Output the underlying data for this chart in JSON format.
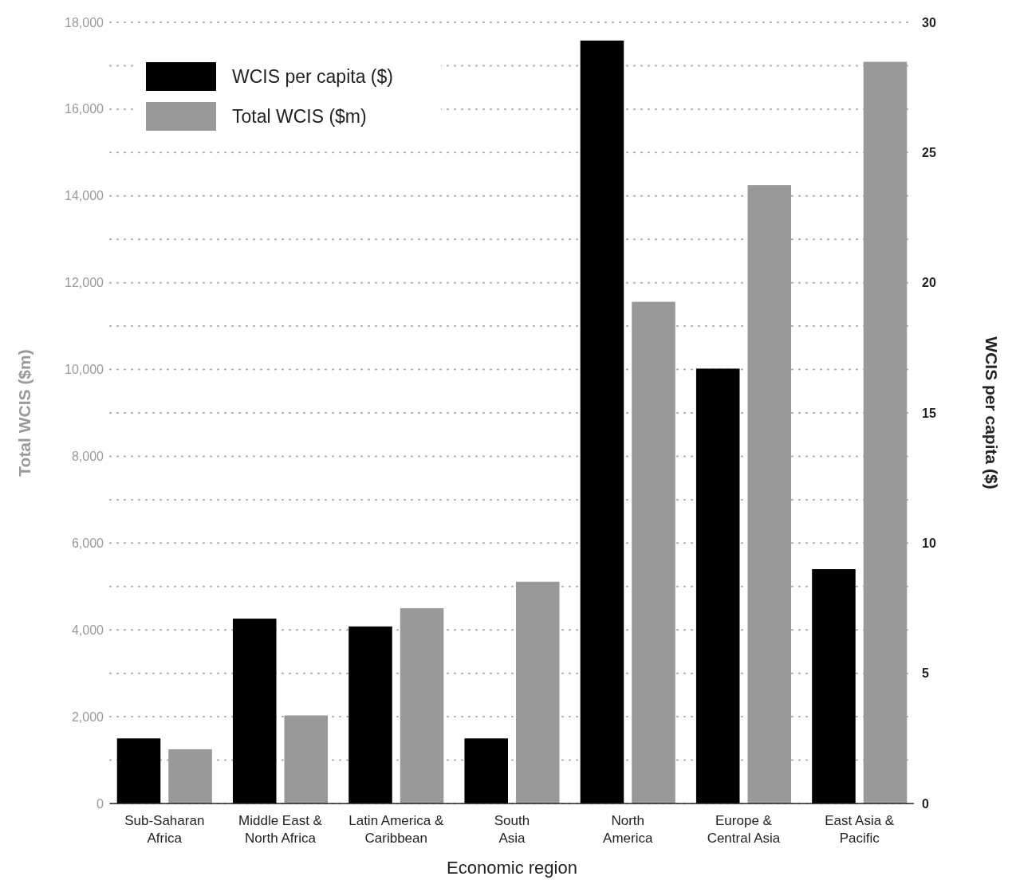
{
  "chart_data": {
    "type": "bar",
    "xlabel": "Economic region",
    "ylabel": "Total WCIS ($m)",
    "y2label": "WCIS per capita ($)",
    "categories": [
      "Sub-Saharan\nAfrica",
      "Middle East &\nNorth Africa",
      "Latin America &\nCaribbean",
      "South\nAsia",
      "North\nAmerica",
      "Europe &\nCentral Asia",
      "East Asia &\nPacific"
    ],
    "series": [
      {
        "name": "WCIS per capita ($)",
        "color": "#000000",
        "axis": "y2",
        "values": [
          2.5,
          7.1,
          6.8,
          2.5,
          29.3,
          16.7,
          9.0
        ]
      },
      {
        "name": "Total WCIS ($m)",
        "color": "#999999",
        "values": [
          1250,
          2030,
          4500,
          5110,
          11560,
          14250,
          17090
        ]
      }
    ],
    "ylim": [
      0,
      18000
    ],
    "yticks": [
      0,
      {
        "value": 1000,
        "label": null
      },
      {
        "value": 2000,
        "label": "2,000"
      },
      {
        "value": 3000,
        "label": null
      },
      {
        "value": 4000,
        "label": "4,000"
      },
      {
        "value": 5000,
        "label": null
      },
      {
        "value": 6000,
        "label": "6,000"
      },
      {
        "value": 7000,
        "label": null
      },
      {
        "value": 8000,
        "label": "8,000"
      },
      {
        "value": 9000,
        "label": null
      },
      {
        "value": 10000,
        "label": "10,000"
      },
      {
        "value": 11000,
        "label": null
      },
      {
        "value": 12000,
        "label": "12,000"
      },
      {
        "value": 13000,
        "label": null
      },
      {
        "value": 14000,
        "label": "14,000"
      },
      {
        "value": 15000,
        "label": null
      },
      {
        "value": 16000,
        "label": "16,000"
      },
      {
        "value": 17000,
        "label": null
      },
      {
        "value": 18000,
        "label": "18,000"
      }
    ],
    "y2lim": [
      0,
      30
    ],
    "y2ticks": [
      0,
      5,
      10,
      15,
      20,
      25,
      30
    ],
    "grid": "y",
    "legend": "top left"
  }
}
